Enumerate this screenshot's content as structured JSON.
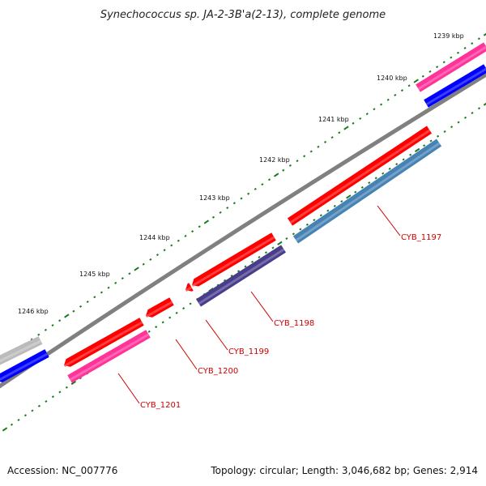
{
  "title": "Synechococcus sp. JA-2-3B'a(2-13), complete genome",
  "footer": {
    "accession": "Accession: NC_007776",
    "summary": "Topology: circular; Length: 3,046,682 bp; Genes: 2,914"
  },
  "colors": {
    "backbone": "#808080",
    "tick": "#1a7a1a",
    "cds_red": "#ff0000",
    "cds_pink": "#ff3399",
    "cds_blue": "#0000ff",
    "cds_steelblue": "#4682b4",
    "cds_slate": "#483d8b",
    "cds_grey": "#bbbbbb",
    "label": "#cc0000"
  },
  "scale_labels": [
    "1239 kbp",
    "1240 kbp",
    "1241 kbp",
    "1242 kbp",
    "1243 kbp",
    "1244 kbp",
    "1245 kbp",
    "1246 kbp"
  ],
  "gene_labels": [
    "CYB_1197",
    "CYB_1198",
    "CYB_1199",
    "CYB_1200",
    "CYB_1201"
  ]
}
